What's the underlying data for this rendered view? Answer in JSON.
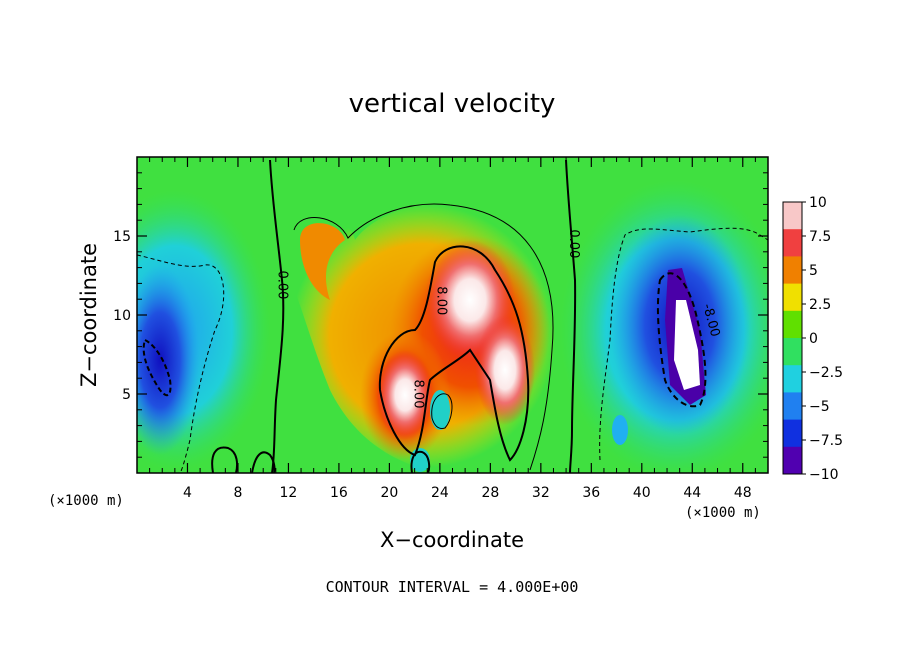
{
  "chart_data": {
    "type": "heatmap",
    "title": "vertical velocity",
    "xlabel": "X−coordinate",
    "ylabel": "Z−coordinate",
    "x_unit": "(×1000 m)",
    "x_unit_secondary": "(×1000 m)",
    "xlim": [
      0,
      50
    ],
    "ylim": [
      0,
      20
    ],
    "x_ticks": [
      4,
      8,
      12,
      16,
      20,
      24,
      28,
      32,
      36,
      40,
      44,
      48
    ],
    "y_ticks": [
      5,
      10,
      15
    ],
    "colorbar": {
      "ticks": [
        "10",
        "7.5",
        "5",
        "2.5",
        "0",
        "−2.5",
        "−5",
        "−7.5",
        "−10"
      ],
      "range": [
        -10,
        10
      ],
      "colors": [
        "#f8c8c8",
        "#f04040",
        "#f08000",
        "#f0e000",
        "#60e000",
        "#30e060",
        "#20d0e0",
        "#2080f0",
        "#1030e0",
        "#5000b0"
      ]
    },
    "contour_labels": [
      {
        "text": "0.00",
        "x": 11.2,
        "y": 11.9,
        "rotate": 90
      },
      {
        "text": "0.00",
        "x": 34.3,
        "y": 14.5,
        "rotate": 90
      },
      {
        "text": "8.00",
        "x": 23.8,
        "y": 10.9,
        "rotate": 90
      },
      {
        "text": "8.00",
        "x": 22.0,
        "y": 5.0,
        "rotate": 90
      },
      {
        "text": "-8.00",
        "x": 45.2,
        "y": 9.6,
        "rotate": 75
      }
    ],
    "footer": "CONTOUR INTERVAL = 4.000E+00",
    "contour_interval": 4.0
  }
}
